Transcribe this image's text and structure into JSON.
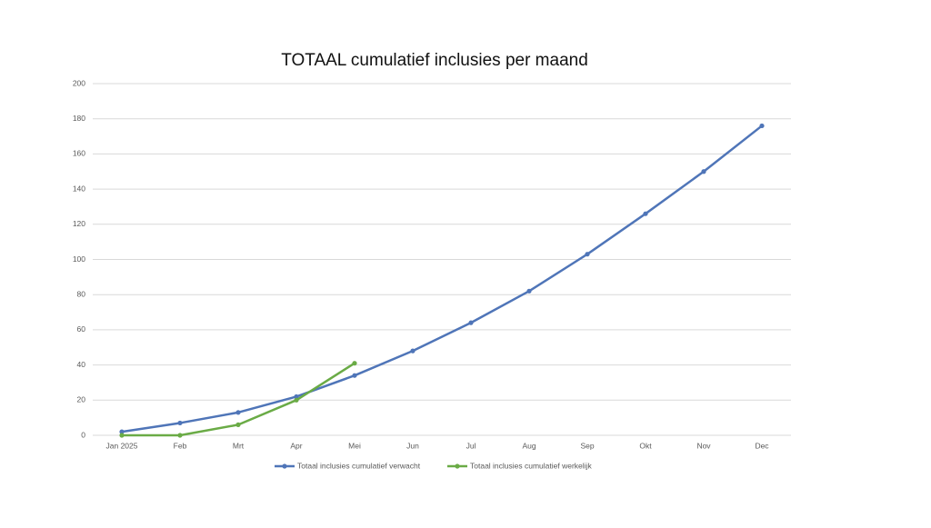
{
  "chart_data": {
    "type": "line",
    "title": "TOTAAL cumulatief inclusies per maand",
    "categories": [
      "Jan 2025",
      "Feb",
      "Mrt",
      "Apr",
      "Mei",
      "Jun",
      "Jul",
      "Aug",
      "Sep",
      "Okt",
      "Nov",
      "Dec"
    ],
    "series": [
      {
        "name": "Totaal inclusies cumulatief verwacht",
        "color": "#4f75b8",
        "values": [
          2,
          7,
          13,
          22,
          34,
          48,
          64,
          82,
          103,
          126,
          150,
          176
        ]
      },
      {
        "name": "Totaal inclusies cumulatief werkelijk",
        "color": "#6aab46",
        "values": [
          0,
          0,
          6,
          20,
          41,
          null,
          null,
          null,
          null,
          null,
          null,
          null
        ]
      }
    ],
    "ylim": [
      0,
      200
    ],
    "yticks": [
      0,
      20,
      40,
      60,
      80,
      100,
      120,
      140,
      160,
      180,
      200
    ],
    "grid": true,
    "legend": "bottom"
  }
}
